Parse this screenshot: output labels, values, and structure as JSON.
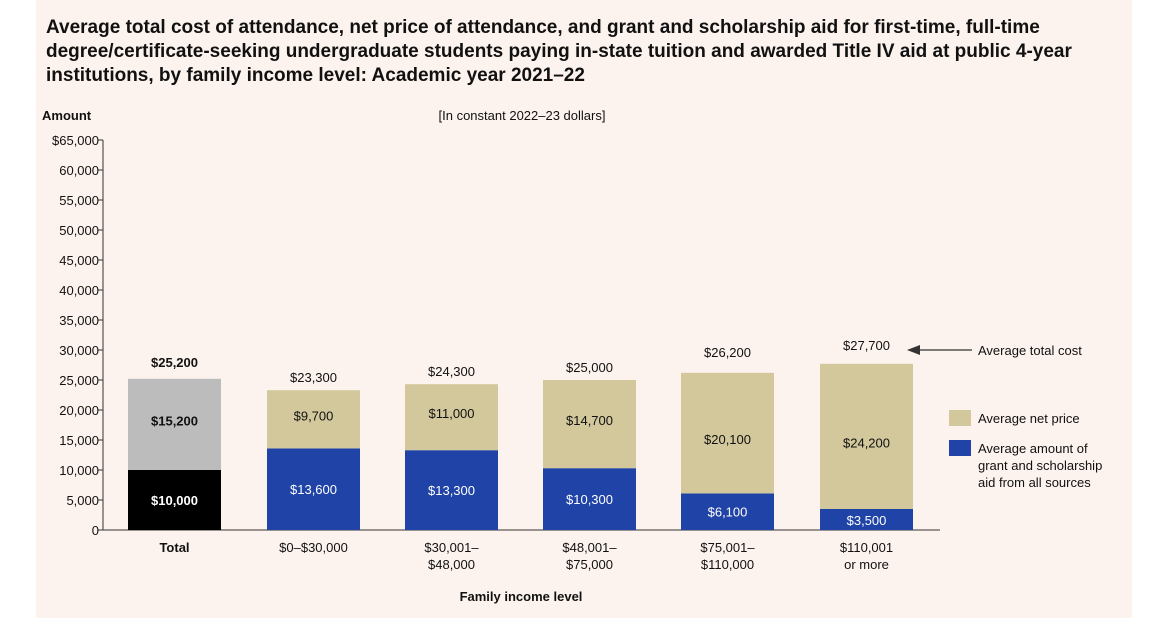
{
  "title": "Average total cost of attendance, net price of attendance, and grant and scholarship aid for first-time, full-time degree/certificate-seeking undergraduate students paying in-state tuition and awarded Title IV aid at public 4-year institutions, by family income level: Academic year 2021–22",
  "colors": {
    "net_price": "#d2c89b",
    "grant_aid": "#1f43a6",
    "total_net_price": "#bcbcbc",
    "total_grant_aid": "#000000",
    "axis": "#333333",
    "background": "#fdf3ee"
  },
  "chart_data": {
    "type": "bar",
    "stacked": true,
    "title": "Average total cost of attendance, net price of attendance, and grant and scholarship aid for first-time, full-time degree/certificate-seeking undergraduate students paying in-state tuition and awarded Title IV aid at public 4-year institutions, by family income level: Academic year 2021–22",
    "subtitle": "[In constant 2022–23 dollars]",
    "ylabel": "Amount",
    "xlabel": "Family income level",
    "ylim": [
      0,
      65000
    ],
    "yticks": [
      0,
      5000,
      10000,
      15000,
      20000,
      25000,
      30000,
      35000,
      40000,
      45000,
      50000,
      55000,
      60000,
      65000
    ],
    "ytick_labels": [
      "0",
      "5,000",
      "10,000",
      "15,000",
      "20,000",
      "25,000",
      "30,000",
      "35,000",
      "40,000",
      "45,000",
      "50,000",
      "55,000",
      "60,000",
      "$65,000"
    ],
    "categories": [
      [
        "Total"
      ],
      [
        "$0–$30,000"
      ],
      [
        "$30,001–",
        "$48,000"
      ],
      [
        "$48,001–",
        "$75,000"
      ],
      [
        "$75,001–",
        "$110,000"
      ],
      [
        "$110,001",
        "or more"
      ]
    ],
    "series": [
      {
        "name": "Average amount of grant and scholarship aid from all sources",
        "values": [
          10000,
          13600,
          13300,
          10300,
          6100,
          3500
        ],
        "labels": [
          "$10,000",
          "$13,600",
          "$13,300",
          "$10,300",
          "$6,100",
          "$3,500"
        ]
      },
      {
        "name": "Average net price",
        "values": [
          15200,
          9700,
          11000,
          14700,
          20100,
          24200
        ],
        "labels": [
          "$15,200",
          "$9,700",
          "$11,000",
          "$14,700",
          "$20,100",
          "$24,200"
        ]
      }
    ],
    "totals": [
      25200,
      23300,
      24300,
      25000,
      26200,
      27700
    ],
    "total_labels": [
      "$25,200",
      "$23,300",
      "$24,300",
      "$25,000",
      "$26,200",
      "$27,700"
    ],
    "annotation": "Average total cost",
    "legend": {
      "placement": "right",
      "items": [
        {
          "label_lines": [
            "Average net price"
          ],
          "color": "#d2c89b"
        },
        {
          "label_lines": [
            "Average amount of",
            "grant and scholarship",
            "aid from all sources"
          ],
          "color": "#1f43a6"
        }
      ]
    },
    "grid": false
  }
}
